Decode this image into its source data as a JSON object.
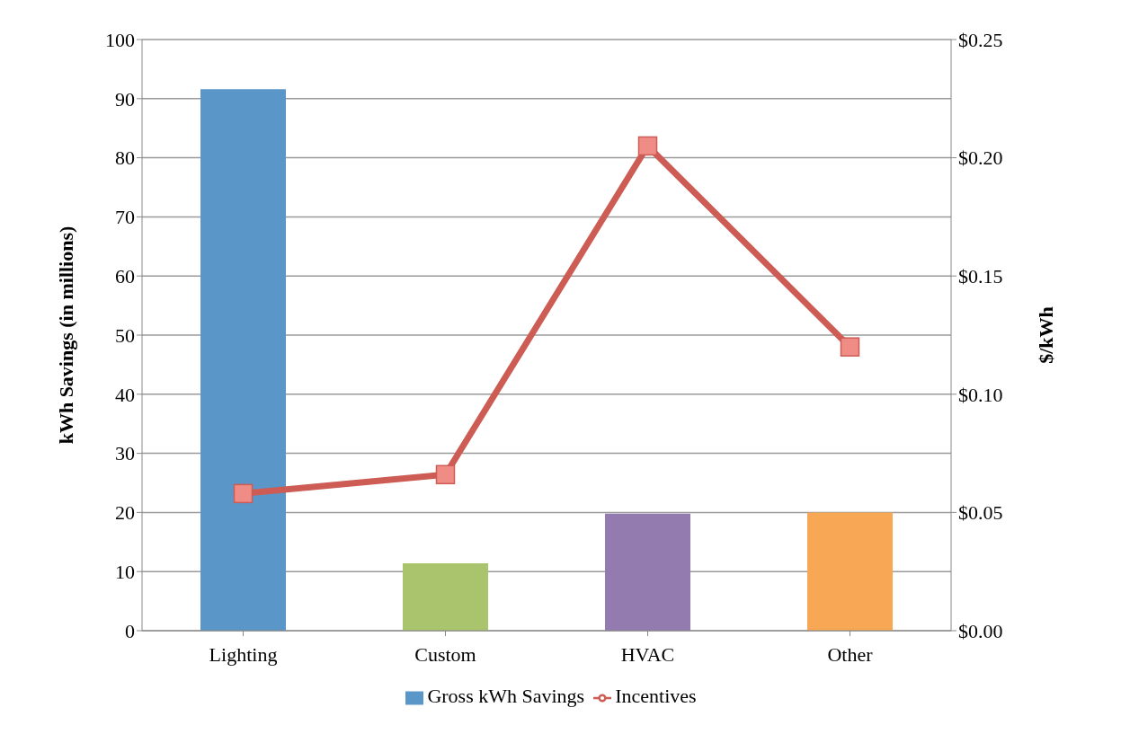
{
  "chart_data": {
    "type": "bar",
    "categories": [
      "Lighting",
      "Custom",
      "HVAC",
      "Other"
    ],
    "ylabel": "kWh Savings (in millions)",
    "y2label": "$/kWh",
    "series": [
      {
        "name": "Gross kWh Savings",
        "color": "#5b96c9",
        "colors": [
          "#5b96c9",
          "#a9c46c",
          "#937bb0",
          "#f8a854"
        ],
        "values": [
          91.6,
          11.4,
          19.8,
          20.0
        ]
      },
      {
        "name": "Incentives",
        "type": "line",
        "axis": "y2",
        "color": "#cd5c55",
        "values": [
          0.058,
          0.066,
          0.205,
          0.12
        ]
      }
    ],
    "ylim": [
      0,
      100
    ],
    "yticks": [
      0,
      10,
      20,
      30,
      40,
      50,
      60,
      70,
      80,
      90,
      100
    ],
    "y2lim": [
      0,
      0.25
    ],
    "y2ticks": [
      {
        "value": 0,
        "label": "$0.00"
      },
      {
        "value": 0.05,
        "label": "$0.05"
      },
      {
        "value": 0.1,
        "label": "$0.10"
      },
      {
        "value": 0.15,
        "label": "$0.15"
      },
      {
        "value": 0.2,
        "label": "$0.20"
      },
      {
        "value": 0.25,
        "label": "$0.25"
      }
    ],
    "grid": "y",
    "legend": "bottom",
    "marker": "square",
    "line_style": "solid"
  }
}
